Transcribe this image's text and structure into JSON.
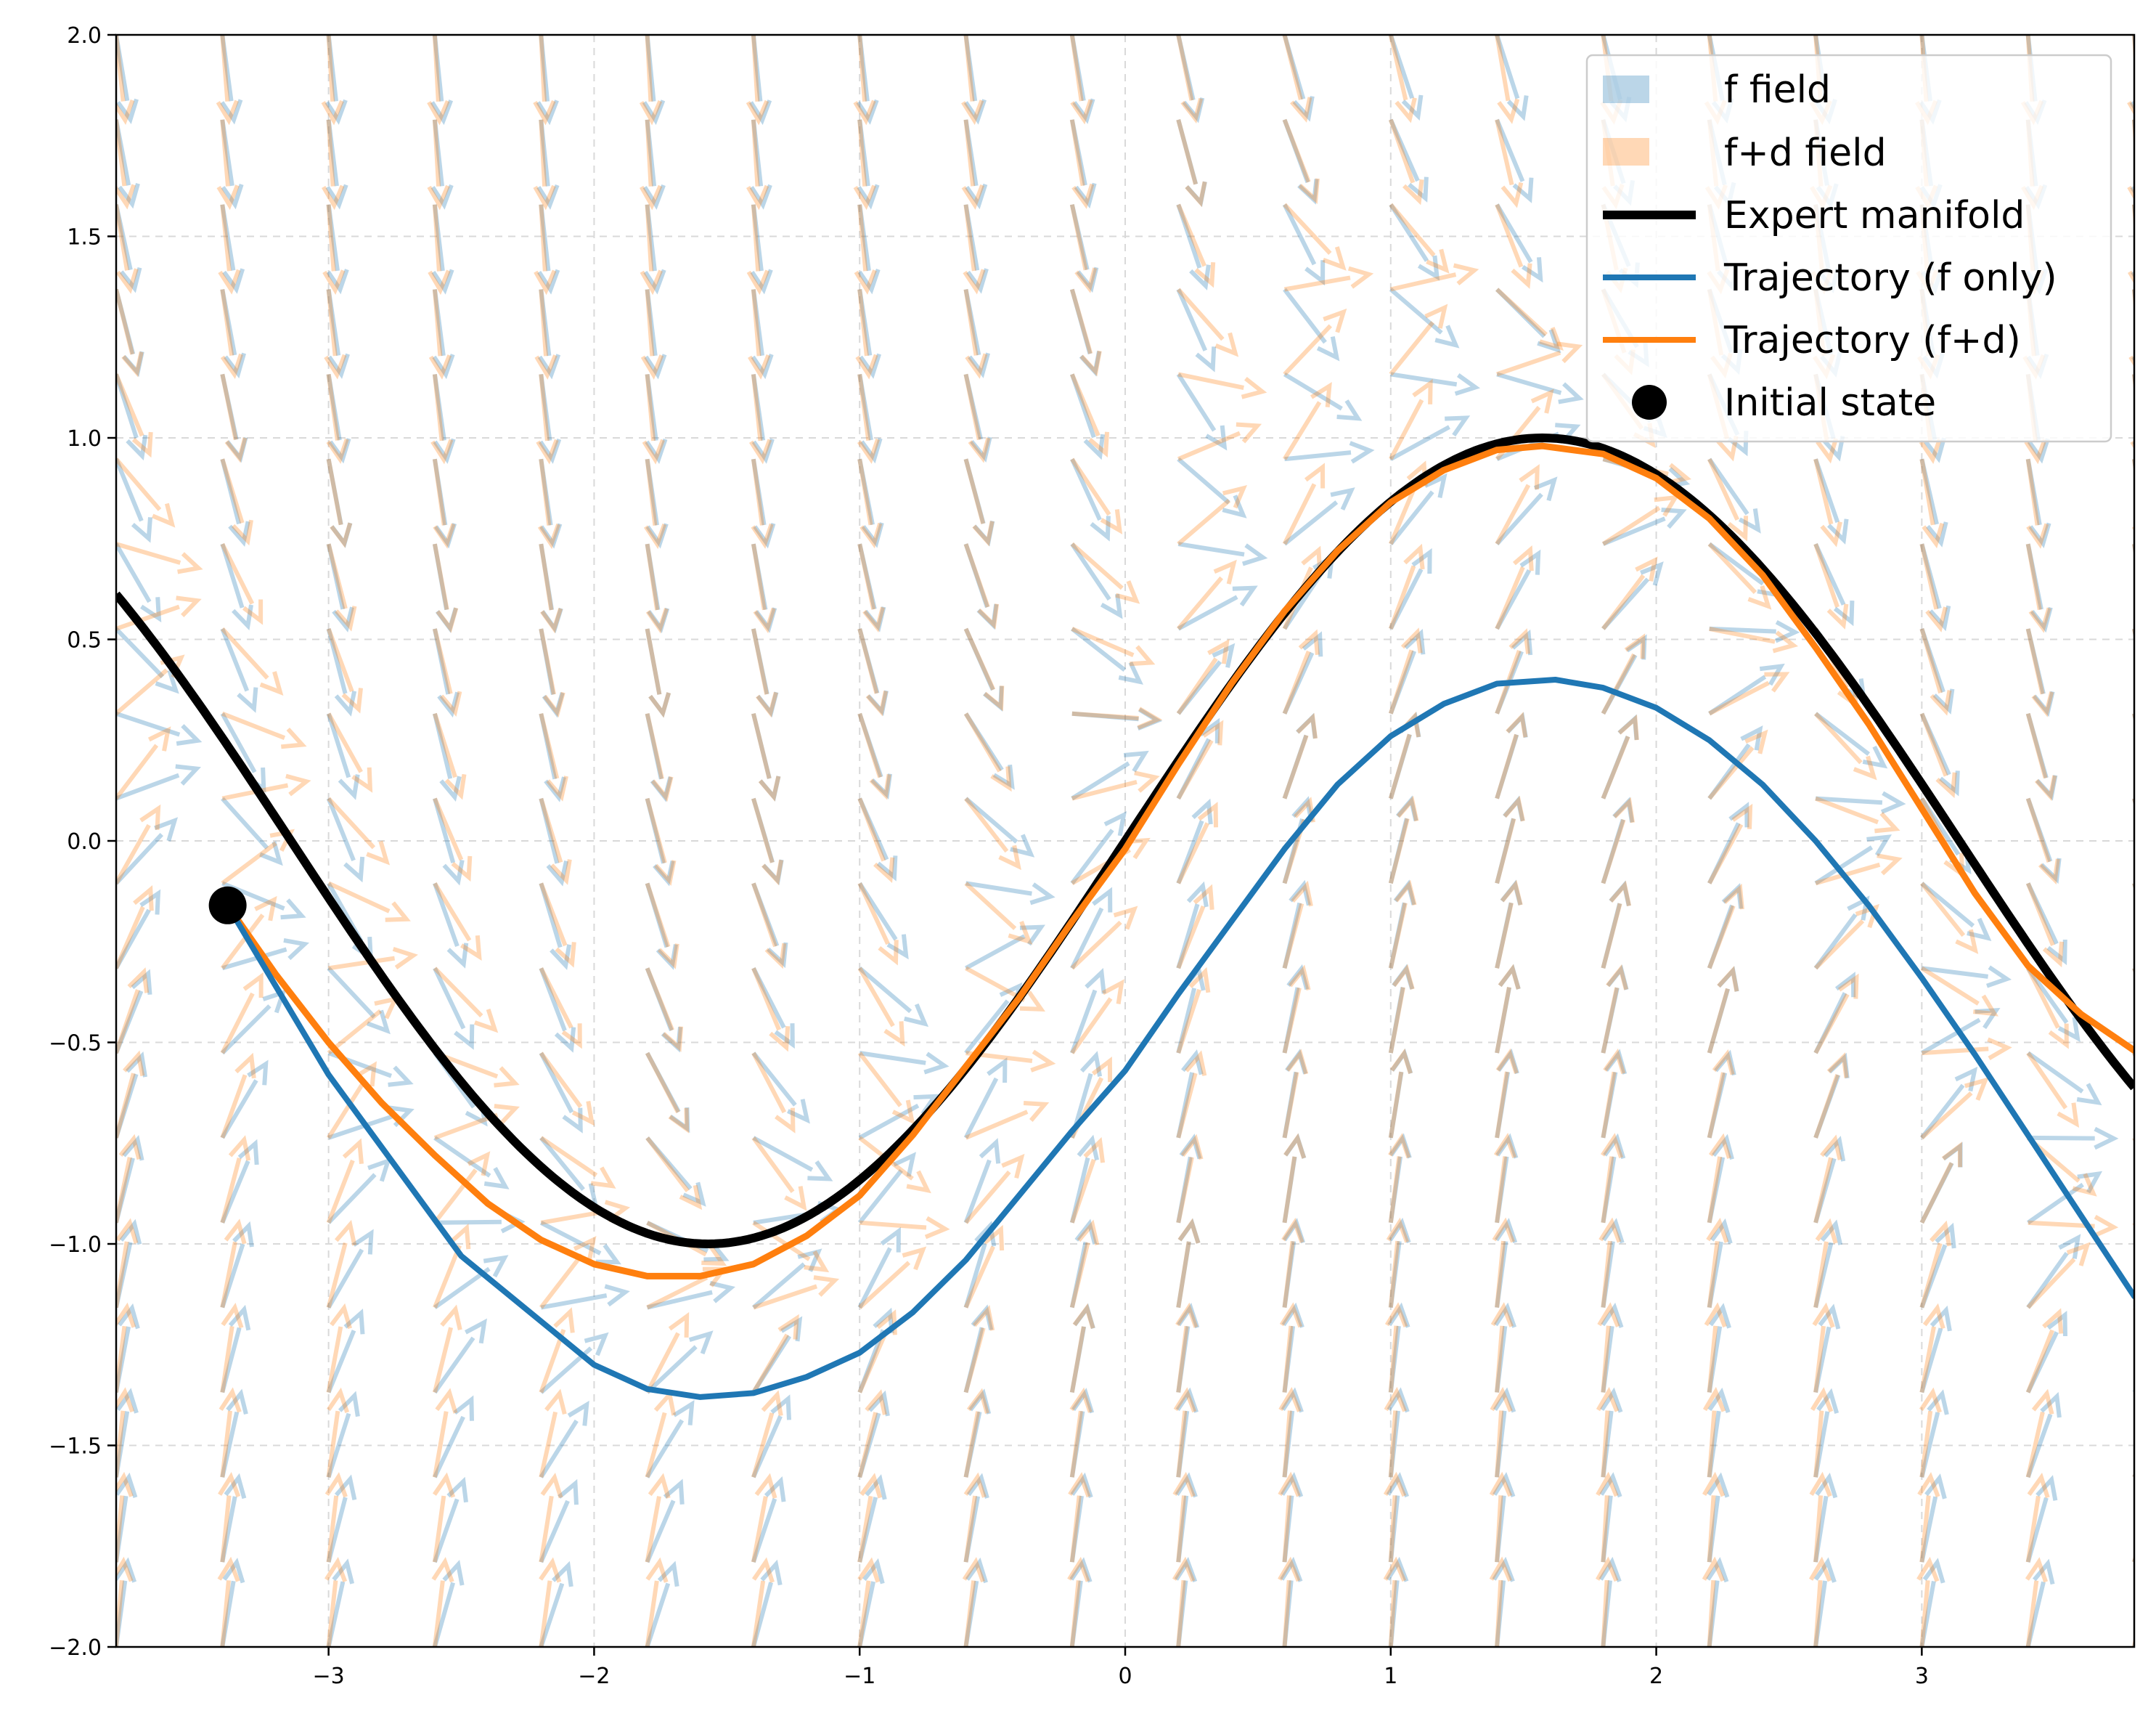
{
  "chart_data": {
    "type": "quiver",
    "title": "",
    "xlabel": "",
    "ylabel": "",
    "xlim": [
      -3.8,
      3.8
    ],
    "ylim": [
      -2.0,
      2.0
    ],
    "grid": true,
    "legend_position": "top-right",
    "x_ticks": [
      -3,
      -2,
      -1,
      0,
      1,
      2,
      3
    ],
    "y_ticks": [
      -2.0,
      -1.5,
      -1.0,
      -0.5,
      0.0,
      0.5,
      1.0,
      1.5,
      2.0
    ],
    "x_tick_labels": [
      "−3",
      "−2",
      "−1",
      "0",
      "1",
      "2",
      "3"
    ],
    "y_tick_labels": [
      "−2.0",
      "−1.5",
      "−1.0",
      "−0.5",
      "0.0",
      "0.5",
      "1.0",
      "1.5",
      "2.0"
    ],
    "field_grid": {
      "x_start": -3.8,
      "x_end": 3.8,
      "nx": 20,
      "y_start": -2.0,
      "y_end": 2.0,
      "ny": 20
    },
    "series": [
      {
        "name": "f field",
        "kind": "quiver",
        "color": "#1f77b4",
        "alpha": 0.3
      },
      {
        "name": "f+d field",
        "kind": "quiver",
        "color": "#ff7f0e",
        "alpha": 0.3
      },
      {
        "name": "Expert manifold",
        "kind": "line",
        "color": "#000000",
        "function": "y = sin(x)",
        "x_range": [
          -3.8,
          3.8
        ]
      },
      {
        "name": "Trajectory (f only)",
        "kind": "line",
        "color": "#1f77b4",
        "x": [
          -3.38,
          -3.0,
          -2.5,
          -2.0,
          -1.8,
          -1.6,
          -1.4,
          -1.2,
          -1.0,
          -0.8,
          -0.6,
          -0.4,
          -0.2,
          0.0,
          0.2,
          0.4,
          0.6,
          0.8,
          1.0,
          1.2,
          1.4,
          1.62,
          1.8,
          2.0,
          2.2,
          2.4,
          2.6,
          2.8,
          3.0,
          3.2,
          3.4,
          3.6,
          3.8
        ],
        "y": [
          -0.16,
          -0.58,
          -1.03,
          -1.3,
          -1.36,
          -1.38,
          -1.37,
          -1.33,
          -1.27,
          -1.17,
          -1.04,
          -0.88,
          -0.72,
          -0.57,
          -0.38,
          -0.2,
          -0.02,
          0.14,
          0.26,
          0.34,
          0.39,
          0.4,
          0.38,
          0.33,
          0.25,
          0.14,
          0.0,
          -0.16,
          -0.34,
          -0.53,
          -0.73,
          -0.93,
          -1.13
        ]
      },
      {
        "name": "Trajectory (f+d)",
        "kind": "line",
        "color": "#ff7f0e",
        "x": [
          -3.38,
          -3.2,
          -3.0,
          -2.8,
          -2.6,
          -2.4,
          -2.2,
          -2.0,
          -1.8,
          -1.6,
          -1.4,
          -1.2,
          -1.0,
          -0.8,
          -0.6,
          -0.4,
          -0.2,
          0.0,
          0.2,
          0.4,
          0.6,
          0.8,
          1.0,
          1.2,
          1.4,
          1.57,
          1.8,
          2.0,
          2.2,
          2.4,
          2.6,
          2.8,
          3.0,
          3.2,
          3.4,
          3.6,
          3.8
        ],
        "y": [
          -0.16,
          -0.33,
          -0.5,
          -0.65,
          -0.78,
          -0.9,
          -0.99,
          -1.05,
          -1.08,
          -1.08,
          -1.05,
          -0.98,
          -0.88,
          -0.73,
          -0.56,
          -0.39,
          -0.2,
          -0.02,
          0.19,
          0.39,
          0.57,
          0.72,
          0.84,
          0.92,
          0.97,
          0.98,
          0.96,
          0.9,
          0.8,
          0.66,
          0.48,
          0.29,
          0.08,
          -0.13,
          -0.31,
          -0.43,
          -0.52
        ]
      },
      {
        "name": "Initial state",
        "kind": "scatter",
        "color": "#000000",
        "x": [
          -3.38
        ],
        "y": [
          -0.16
        ]
      }
    ]
  }
}
